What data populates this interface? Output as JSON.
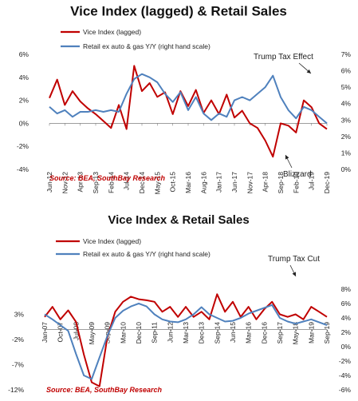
{
  "chart_data": [
    {
      "type": "line",
      "title": "Vice Index (lagged) & Retail Sales",
      "legend": [
        "Vice Index (lagged)",
        "Retail ex auto & gas Y/Y (right hand scale)"
      ],
      "source": "Source: BEA, SouthBay Research",
      "annotations": [
        "Trump Tax Effect",
        "Blizzard"
      ],
      "x_tick_labels": [
        "Jun-12",
        "Nov-12",
        "Apr-13",
        "Sep-13",
        "Feb-14",
        "Jul-14",
        "Dec-14",
        "May-15",
        "Oct-15",
        "Mar-16",
        "Aug-16",
        "Jan-17",
        "Jun-17",
        "Nov-17",
        "Apr-18",
        "Sep-18",
        "Feb-19",
        "Jul-19",
        "Dec-19"
      ],
      "y_left": {
        "ticks": [
          "6%",
          "4%",
          "2%",
          "0%",
          "-2%",
          "-4%"
        ],
        "values": [
          6,
          4,
          2,
          0,
          -2,
          -4
        ],
        "ylim": [
          -4,
          6
        ]
      },
      "y_right": {
        "ticks": [
          "7%",
          "6%",
          "5%",
          "4%",
          "3%",
          "2%",
          "1%",
          "0%"
        ],
        "values": [
          7,
          6,
          5,
          4,
          3,
          2,
          1,
          0
        ],
        "ylim": [
          0,
          7
        ]
      },
      "colors": {
        "left": "#c00000",
        "right": "#4f81bd"
      },
      "series": [
        {
          "name": "Vice Index (lagged)",
          "axis": "left",
          "x": [
            0,
            0.5,
            1,
            1.5,
            2,
            2.5,
            3,
            3.5,
            4,
            4.5,
            5,
            5.5,
            6,
            6.5,
            7,
            7.5,
            8,
            8.5,
            9,
            9.5,
            10,
            10.5,
            11,
            11.5,
            12,
            12.5,
            13,
            13.5,
            14,
            14.5,
            15,
            15.5,
            16,
            16.5,
            17,
            17.5,
            18
          ],
          "values": [
            2.2,
            3.8,
            1.6,
            2.8,
            1.9,
            1.3,
            0.8,
            0.2,
            -0.4,
            1.6,
            -0.5,
            5.0,
            2.8,
            3.5,
            2.3,
            2.7,
            0.8,
            2.8,
            1.5,
            2.9,
            0.9,
            2.0,
            0.8,
            2.5,
            0.5,
            1.1,
            0.0,
            -0.4,
            -1.5,
            -2.9,
            0.0,
            -0.2,
            -0.8,
            2.0,
            1.4,
            0.0,
            -0.5
          ]
        },
        {
          "name": "Retail ex auto & gas Y/Y (right hand scale)",
          "axis": "right",
          "x": [
            0,
            0.5,
            1,
            1.5,
            2,
            2.5,
            3,
            3.5,
            4,
            4.5,
            5,
            5.5,
            6,
            6.5,
            7,
            7.5,
            8,
            8.5,
            9,
            9.5,
            10,
            10.5,
            11,
            11.5,
            12,
            12.5,
            13,
            13.5,
            14,
            14.5,
            15,
            15.5,
            16,
            16.5,
            17,
            17.5,
            18
          ],
          "values": [
            3.8,
            3.4,
            3.6,
            3.2,
            3.5,
            3.5,
            3.6,
            3.5,
            3.6,
            3.5,
            4.6,
            5.5,
            5.8,
            5.6,
            5.3,
            4.6,
            4.1,
            4.7,
            3.6,
            4.4,
            3.4,
            3.0,
            3.4,
            3.2,
            4.2,
            4.4,
            4.2,
            4.6,
            5.0,
            5.7,
            4.4,
            3.6,
            3.1,
            3.8,
            3.6,
            3.2,
            2.8
          ]
        }
      ]
    },
    {
      "type": "line",
      "title": "Vice Index & Retail Sales",
      "legend": [
        "Vice Index (lagged)",
        "Retail ex auto & gas Y/Y (right hand scale)"
      ],
      "source": "Source: BEA, SouthBay Research",
      "annotations": [
        "Trump Tax Cut"
      ],
      "x_tick_labels": [
        "Jan-07",
        "Oct-07",
        "Jul-08",
        "May-09",
        "Sep-09",
        "Mar-10",
        "Dec-10",
        "Sep-11",
        "Jun-12",
        "Mar-13",
        "Dec-13",
        "Sep-14",
        "Jun-15",
        "Mar-16",
        "Dec-16",
        "Sep-17",
        "May-18",
        "Mar-19",
        "Sep-19"
      ],
      "y_left": {
        "ticks": [
          "3%",
          "-2%",
          "-7%",
          "-12%"
        ],
        "values": [
          3,
          -2,
          -7,
          -12
        ],
        "ylim": [
          -12,
          8
        ]
      },
      "y_right": {
        "ticks": [
          "8%",
          "6%",
          "4%",
          "2%",
          "0%",
          "-2%",
          "-4%",
          "-6%"
        ],
        "values": [
          8,
          6,
          4,
          2,
          0,
          -2,
          -4,
          -6
        ],
        "ylim": [
          -6,
          8
        ]
      },
      "colors": {
        "left": "#c00000",
        "right": "#4f81bd"
      },
      "series": [
        {
          "name": "Vice Index (lagged)",
          "axis": "left",
          "x": [
            0,
            0.5,
            1,
            1.5,
            2,
            2.5,
            3,
            3.5,
            4,
            4.5,
            5,
            5.5,
            6,
            6.5,
            7,
            7.5,
            8,
            8.5,
            9,
            9.5,
            10,
            10.5,
            11,
            11.5,
            12,
            12.5,
            13,
            13.5,
            14,
            14.5,
            15,
            15.5,
            16,
            16.5,
            17,
            17.5,
            18
          ],
          "values": [
            2.5,
            4.5,
            2.0,
            3.8,
            1.5,
            -5.0,
            -10.5,
            -11.3,
            -1.5,
            3.5,
            5.5,
            6.5,
            6.0,
            5.8,
            5.5,
            3.5,
            4.5,
            2.5,
            4.5,
            2.5,
            3.5,
            2.0,
            7.0,
            3.5,
            5.5,
            2.5,
            4.5,
            2.0,
            4.0,
            5.5,
            3.0,
            2.5,
            3.0,
            2.0,
            4.5,
            3.5,
            2.5
          ]
        },
        {
          "name": "Retail ex auto & gas Y/Y (right hand scale)",
          "axis": "right",
          "x": [
            0,
            0.5,
            1,
            1.5,
            2,
            2.5,
            3,
            3.5,
            4,
            4.5,
            5,
            5.5,
            6,
            6.5,
            7,
            7.5,
            8,
            8.5,
            9,
            9.5,
            10,
            10.5,
            11,
            11.5,
            12,
            12.5,
            13,
            13.5,
            14,
            14.5,
            15,
            15.5,
            16,
            16.5,
            17,
            17.5,
            18
          ],
          "values": [
            4.5,
            3.8,
            3.0,
            2.2,
            -1.0,
            -4.0,
            -4.5,
            -1.5,
            1.5,
            4.0,
            5.0,
            5.6,
            6.0,
            5.6,
            4.5,
            3.8,
            3.5,
            3.4,
            3.8,
            4.5,
            5.5,
            4.5,
            4.0,
            3.5,
            3.6,
            4.0,
            4.6,
            5.0,
            5.4,
            5.8,
            4.0,
            3.5,
            3.2,
            3.5,
            3.8,
            3.4,
            3.0
          ]
        }
      ]
    }
  ]
}
